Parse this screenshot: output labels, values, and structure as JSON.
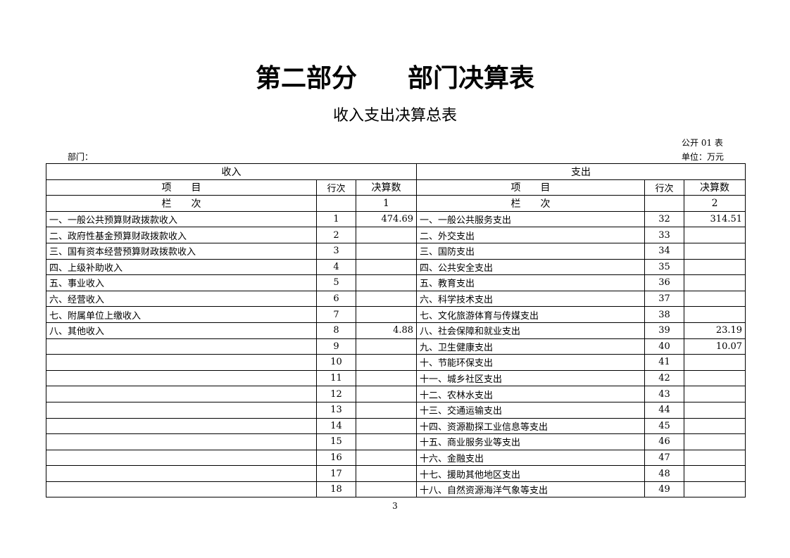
{
  "title": "第二部分　　部门决算表",
  "subtitle": "收入支出决算总表",
  "form_no": "公开 01 表",
  "department_label": "部门：",
  "unit_label": "单位：万元",
  "headers": {
    "income": "收入",
    "expense": "支出",
    "item": "项　　目",
    "line": "行次",
    "amount": "决算数",
    "column_label": "栏　　次",
    "income_col": "1",
    "expense_col": "2"
  },
  "rows": [
    {
      "in_item": "一、一般公共预算财政拨款收入",
      "in_line": "1",
      "in_amt": "474.69",
      "ex_item": "一、一般公共服务支出",
      "ex_line": "32",
      "ex_amt": "314.51"
    },
    {
      "in_item": "二、政府性基金预算财政拨款收入",
      "in_line": "2",
      "in_amt": "",
      "ex_item": "二、外交支出",
      "ex_line": "33",
      "ex_amt": ""
    },
    {
      "in_item": "三、国有资本经营预算财政拨款收入",
      "in_line": "3",
      "in_amt": "",
      "ex_item": "三、国防支出",
      "ex_line": "34",
      "ex_amt": ""
    },
    {
      "in_item": "四、上级补助收入",
      "in_line": "4",
      "in_amt": "",
      "ex_item": "四、公共安全支出",
      "ex_line": "35",
      "ex_amt": ""
    },
    {
      "in_item": "五、事业收入",
      "in_line": "5",
      "in_amt": "",
      "ex_item": "五、教育支出",
      "ex_line": "36",
      "ex_amt": ""
    },
    {
      "in_item": "六、经营收入",
      "in_line": "6",
      "in_amt": "",
      "ex_item": "六、科学技术支出",
      "ex_line": "37",
      "ex_amt": ""
    },
    {
      "in_item": "七、附属单位上缴收入",
      "in_line": "7",
      "in_amt": "",
      "ex_item": "七、文化旅游体育与传媒支出",
      "ex_line": "38",
      "ex_amt": ""
    },
    {
      "in_item": "八、其他收入",
      "in_line": "8",
      "in_amt": "4.88",
      "ex_item": "八、社会保障和就业支出",
      "ex_line": "39",
      "ex_amt": "23.19"
    },
    {
      "in_item": "",
      "in_line": "9",
      "in_amt": "",
      "ex_item": "九、卫生健康支出",
      "ex_line": "40",
      "ex_amt": "10.07"
    },
    {
      "in_item": "",
      "in_line": "10",
      "in_amt": "",
      "ex_item": "十、节能环保支出",
      "ex_line": "41",
      "ex_amt": ""
    },
    {
      "in_item": "",
      "in_line": "11",
      "in_amt": "",
      "ex_item": "十一、城乡社区支出",
      "ex_line": "42",
      "ex_amt": ""
    },
    {
      "in_item": "",
      "in_line": "12",
      "in_amt": "",
      "ex_item": "十二、农林水支出",
      "ex_line": "43",
      "ex_amt": ""
    },
    {
      "in_item": "",
      "in_line": "13",
      "in_amt": "",
      "ex_item": "十三、交通运输支出",
      "ex_line": "44",
      "ex_amt": ""
    },
    {
      "in_item": "",
      "in_line": "14",
      "in_amt": "",
      "ex_item": "十四、资源勘探工业信息等支出",
      "ex_line": "45",
      "ex_amt": ""
    },
    {
      "in_item": "",
      "in_line": "15",
      "in_amt": "",
      "ex_item": "十五、商业服务业等支出",
      "ex_line": "46",
      "ex_amt": ""
    },
    {
      "in_item": "",
      "in_line": "16",
      "in_amt": "",
      "ex_item": "十六、金融支出",
      "ex_line": "47",
      "ex_amt": ""
    },
    {
      "in_item": "",
      "in_line": "17",
      "in_amt": "",
      "ex_item": "十七、援助其他地区支出",
      "ex_line": "48",
      "ex_amt": ""
    },
    {
      "in_item": "",
      "in_line": "18",
      "in_amt": "",
      "ex_item": "十八、自然资源海洋气象等支出",
      "ex_line": "49",
      "ex_amt": ""
    }
  ],
  "page_number": "3"
}
